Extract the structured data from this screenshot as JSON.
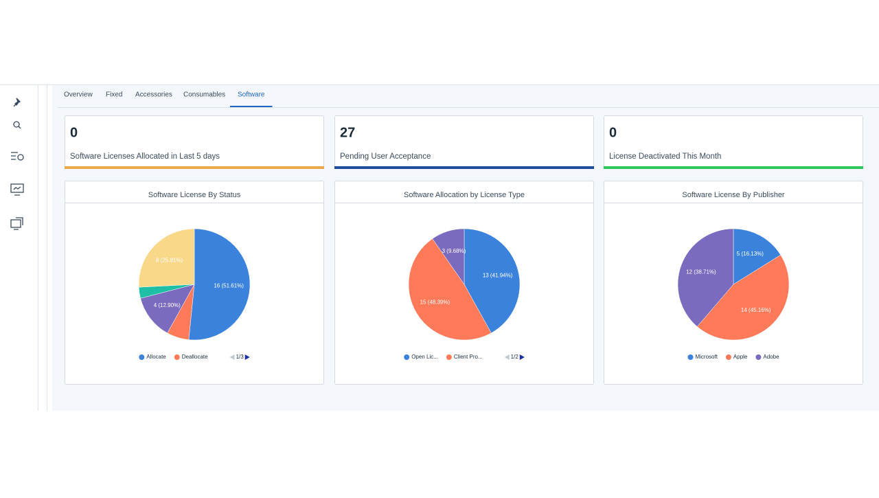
{
  "tabs": [
    "Overview",
    "Fixed",
    "Accessories",
    "Consumables",
    "Software"
  ],
  "active_tab": 4,
  "kpis": [
    {
      "value": 0,
      "label": "Software Licenses Allocated in Last 5 days",
      "color": "#e8a94a"
    },
    {
      "value": 27,
      "label": "Pending User Acceptance",
      "color": "#1f4e9c"
    },
    {
      "value": 0,
      "label": "License Deactivated This Month",
      "color": "#2dc760"
    }
  ],
  "chart_data": [
    {
      "type": "pie",
      "title": "Software License By Status",
      "categories": [
        "Allocate",
        "Deallocate",
        null,
        null,
        null
      ],
      "values": [
        16,
        2,
        4,
        1,
        8
      ],
      "value_labels": [
        "16 (51.61%)",
        null,
        "4 (12.90%)",
        null,
        "8 (25.81%)"
      ],
      "colors": [
        "#3b82dc",
        "#ff7a59",
        "#7b6bbf",
        "#1fbfa5",
        "#fad88a"
      ],
      "legend_page": "1/3"
    },
    {
      "type": "pie",
      "title": "Software Allocation by License Type",
      "categories": [
        "Open Lic...",
        "Client Pro...",
        null
      ],
      "values": [
        13,
        15,
        3
      ],
      "value_labels": [
        "13 (41.94%)",
        "15 (48.39%)",
        "3 (9.68%)"
      ],
      "colors": [
        "#3b82dc",
        "#ff7a59",
        "#7b6bbf"
      ],
      "legend_page": "1/2"
    },
    {
      "type": "pie",
      "title": "Software License By Publisher",
      "categories": [
        "Microsoft",
        "Apple",
        "Adobe"
      ],
      "values": [
        5,
        14,
        12
      ],
      "value_labels": [
        "5 (16.13%)",
        "14 (45.16%)",
        "12 (38.71%)"
      ],
      "colors": [
        "#3b82dc",
        "#ff7a59",
        "#7b6bbf"
      ]
    }
  ]
}
